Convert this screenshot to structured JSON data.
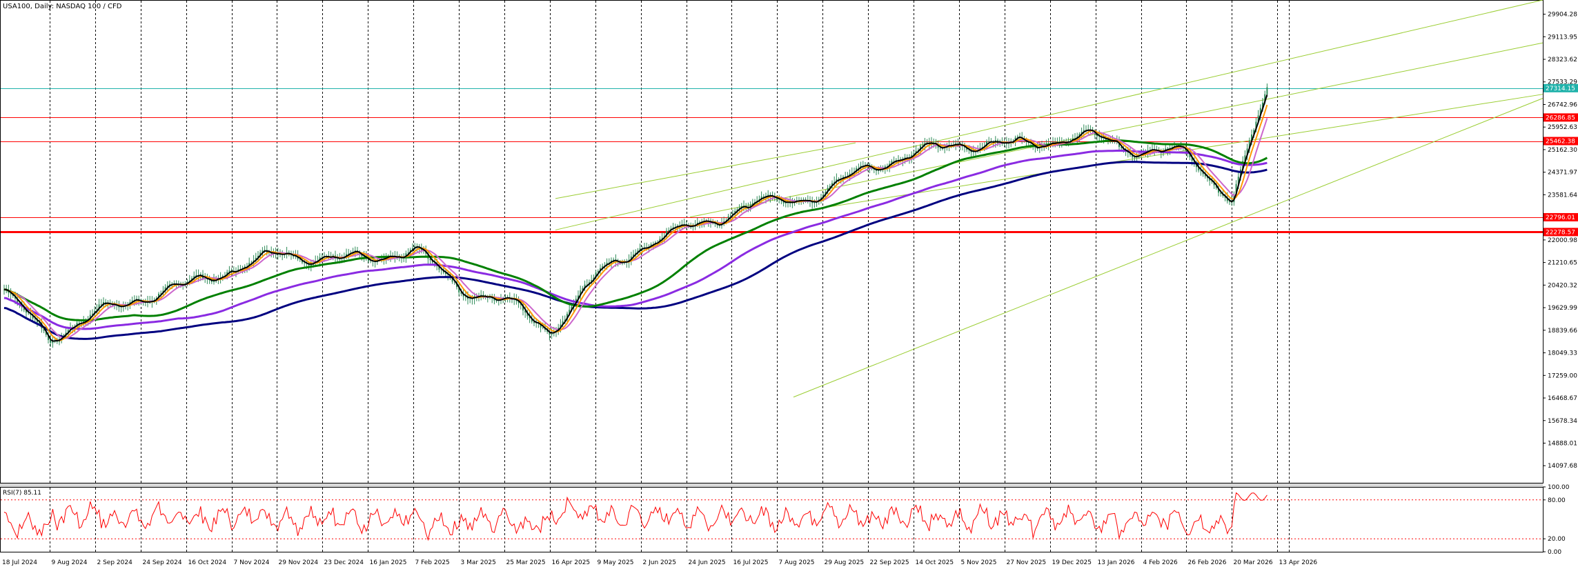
{
  "chart_data": {
    "type": "candlestick",
    "title": "USA100, Daily:  NASDAQ 100 / CFD",
    "colors": {
      "background": "#ffffff",
      "candle": "#2e8b57",
      "grid_vertical": "#000000",
      "channel": "#9acd32",
      "ma_fast": "#000000",
      "ma_10": "#ff9900",
      "ma_20": "#cc66cc",
      "ma_100": "#008000",
      "ma_150": "#8a2be2",
      "ma_200": "#000080",
      "price_line": "#20b2aa",
      "hline_red": "#ff0000",
      "rsi": "#ff0000"
    },
    "price_axis": {
      "ylim": [
        13500,
        30400
      ],
      "ticks": [
        "29904.28",
        "29113.95",
        "28323.62",
        "27533.29",
        "26742.96",
        "25952.63",
        "25162.30",
        "24371.97",
        "23581.64",
        "22791.31",
        "22000.98",
        "21210.65",
        "20420.32",
        "19629.99",
        "18839.66",
        "18049.33",
        "17259.00",
        "16468.67",
        "15678.34",
        "14888.01",
        "14097.68"
      ]
    },
    "price_tags": [
      {
        "label": "27314.15",
        "value": 27314.15,
        "color": "#20b2aa"
      },
      {
        "label": "26286.85",
        "value": 26286.85,
        "color": "#ff0000"
      },
      {
        "label": "25462.38",
        "value": 25462.38,
        "color": "#ff0000"
      },
      {
        "label": "22796.01",
        "value": 22796.01,
        "color": "#ff0000"
      },
      {
        "label": "22278.57",
        "value": 22278.57,
        "color": "#ff0000"
      }
    ],
    "x_dates": [
      "18 Jul 2024",
      "9 Aug 2024",
      "2 Sep 2024",
      "24 Sep 2024",
      "16 Oct 2024",
      "7 Nov 2024",
      "29 Nov 2024",
      "23 Dec 2024",
      "16 Jan 2025",
      "7 Feb 2025",
      "3 Mar 2025",
      "25 Mar 2025",
      "16 Apr 2025",
      "9 May 2025",
      "2 Jun 2025",
      "24 Jun 2025",
      "16 Jul 2025",
      "7 Aug 2025",
      "29 Aug 2025",
      "22 Sep 2025",
      "14 Oct 2025",
      "5 Nov 2025",
      "27 Nov 2025",
      "19 Dec 2025",
      "13 Jan 2026",
      "4 Feb 2026",
      "26 Feb 2026",
      "20 Mar 2026",
      "13 Apr 2026"
    ],
    "close_path": [
      {
        "date": "18 Jul 2024",
        "close": 20150
      },
      {
        "date": "9 Aug 2024",
        "close": 18600
      },
      {
        "date": "2 Sep 2024",
        "close": 19400
      },
      {
        "date": "24 Sep 2024",
        "close": 20000
      },
      {
        "date": "16 Oct 2024",
        "close": 20400
      },
      {
        "date": "7 Nov 2024",
        "close": 21000
      },
      {
        "date": "29 Nov 2024",
        "close": 21500
      },
      {
        "date": "23 Dec 2024",
        "close": 21400
      },
      {
        "date": "16 Jan 2025",
        "close": 21300
      },
      {
        "date": "7 Feb 2025",
        "close": 21700
      },
      {
        "date": "3 Mar 2025",
        "close": 20300
      },
      {
        "date": "25 Mar 2025",
        "close": 19900
      },
      {
        "date": "16 Apr 2025",
        "close": 18800
      },
      {
        "date": "9 May 2025",
        "close": 20700
      },
      {
        "date": "2 Jun 2025",
        "close": 21800
      },
      {
        "date": "24 Jun 2025",
        "close": 22400
      },
      {
        "date": "16 Jul 2025",
        "close": 23000
      },
      {
        "date": "7 Aug 2025",
        "close": 23400
      },
      {
        "date": "29 Aug 2025",
        "close": 23600
      },
      {
        "date": "22 Sep 2025",
        "close": 24600
      },
      {
        "date": "14 Oct 2025",
        "close": 25000
      },
      {
        "date": "5 Nov 2025",
        "close": 25400
      },
      {
        "date": "27 Nov 2025",
        "close": 25300
      },
      {
        "date": "19 Dec 2025",
        "close": 25500
      },
      {
        "date": "13 Jan 2026",
        "close": 25600
      },
      {
        "date": "4 Feb 2026",
        "close": 25100
      },
      {
        "date": "26 Feb 2026",
        "close": 25050
      },
      {
        "date": "20 Mar 2026",
        "close": 23400
      },
      {
        "date": "13 Apr 2026",
        "close": 27314
      }
    ],
    "rsi": {
      "label": "RSI(7) 85.11",
      "ylim": [
        0,
        100
      ],
      "ticks": [
        "100.00",
        "80.00",
        "20.00",
        "0.00"
      ],
      "levels": [
        80,
        20
      ]
    }
  }
}
